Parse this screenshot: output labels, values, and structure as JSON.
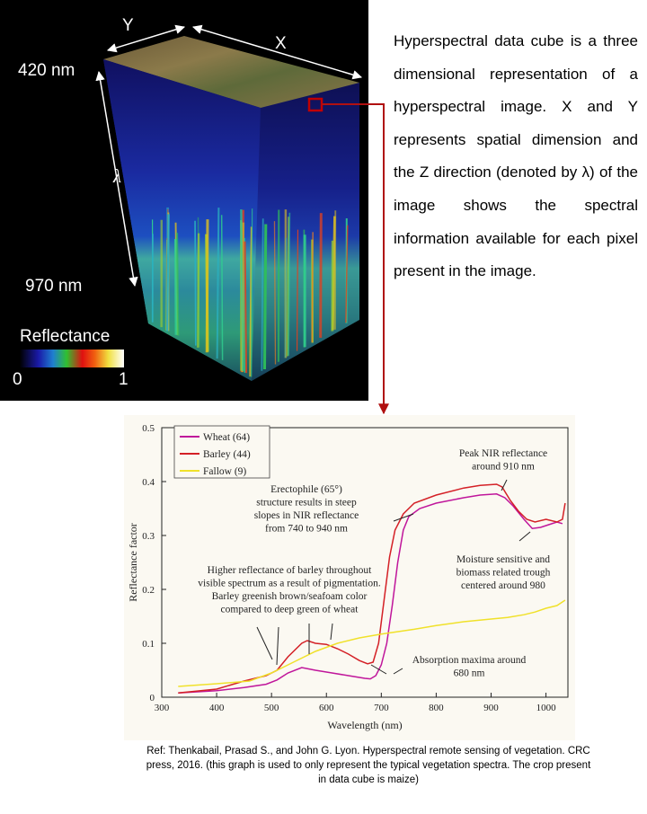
{
  "cube": {
    "axis_y": "Y",
    "axis_x": "X",
    "axis_lambda": "λ",
    "top_wavelength": "420 nm",
    "bottom_wavelength": "970 nm",
    "colorbar": {
      "title": "Reflectance",
      "min_label": "0",
      "max_label": "1"
    }
  },
  "description": "Hyperspectral data cube is a three dimensional representation of a hyperspectral image. X and Y represents spatial dimension and the Z direction (denoted by λ) of the image shows the spectral information available for each pixel present in the image.",
  "chart_data": {
    "type": "line",
    "xlabel": "Wavelength (nm)",
    "ylabel": "Reflectance factor",
    "xlim": [
      300,
      1040
    ],
    "ylim": [
      0,
      0.5
    ],
    "xticks": [
      300,
      400,
      500,
      600,
      700,
      800,
      900,
      1000
    ],
    "yticks": [
      0,
      0.1,
      0.2,
      0.3,
      0.4,
      0.5
    ],
    "ytick_labels": [
      "0",
      "0.1",
      "0.2",
      "0.3",
      "0.4",
      "0.5"
    ],
    "grid": false,
    "legend_position": "top-left",
    "series": [
      {
        "name": "Wheat (64)",
        "color": "#c0169b",
        "points": [
          [
            330,
            0.008
          ],
          [
            400,
            0.012
          ],
          [
            450,
            0.018
          ],
          [
            490,
            0.024
          ],
          [
            510,
            0.032
          ],
          [
            530,
            0.045
          ],
          [
            555,
            0.055
          ],
          [
            580,
            0.05
          ],
          [
            610,
            0.045
          ],
          [
            640,
            0.04
          ],
          [
            670,
            0.035
          ],
          [
            680,
            0.034
          ],
          [
            690,
            0.04
          ],
          [
            700,
            0.06
          ],
          [
            710,
            0.1
          ],
          [
            720,
            0.17
          ],
          [
            730,
            0.25
          ],
          [
            740,
            0.31
          ],
          [
            750,
            0.335
          ],
          [
            770,
            0.35
          ],
          [
            800,
            0.36
          ],
          [
            850,
            0.37
          ],
          [
            880,
            0.375
          ],
          [
            910,
            0.377
          ],
          [
            925,
            0.37
          ],
          [
            940,
            0.355
          ],
          [
            960,
            0.33
          ],
          [
            975,
            0.313
          ],
          [
            990,
            0.315
          ],
          [
            1005,
            0.32
          ],
          [
            1020,
            0.325
          ],
          [
            1030,
            0.322
          ]
        ]
      },
      {
        "name": "Barley (44)",
        "color": "#d42026",
        "points": [
          [
            330,
            0.008
          ],
          [
            400,
            0.015
          ],
          [
            450,
            0.03
          ],
          [
            490,
            0.04
          ],
          [
            510,
            0.05
          ],
          [
            530,
            0.075
          ],
          [
            555,
            0.1
          ],
          [
            565,
            0.105
          ],
          [
            580,
            0.1
          ],
          [
            600,
            0.098
          ],
          [
            620,
            0.09
          ],
          [
            640,
            0.08
          ],
          [
            660,
            0.068
          ],
          [
            675,
            0.062
          ],
          [
            685,
            0.065
          ],
          [
            695,
            0.1
          ],
          [
            705,
            0.18
          ],
          [
            715,
            0.26
          ],
          [
            725,
            0.31
          ],
          [
            740,
            0.34
          ],
          [
            760,
            0.36
          ],
          [
            800,
            0.375
          ],
          [
            850,
            0.388
          ],
          [
            880,
            0.393
          ],
          [
            910,
            0.395
          ],
          [
            920,
            0.39
          ],
          [
            935,
            0.365
          ],
          [
            950,
            0.345
          ],
          [
            965,
            0.33
          ],
          [
            980,
            0.325
          ],
          [
            1000,
            0.33
          ],
          [
            1020,
            0.325
          ],
          [
            1030,
            0.33
          ],
          [
            1035,
            0.36
          ]
        ]
      },
      {
        "name": "Fallow (9)",
        "color": "#f0e12a",
        "points": [
          [
            330,
            0.02
          ],
          [
            400,
            0.025
          ],
          [
            460,
            0.03
          ],
          [
            500,
            0.045
          ],
          [
            540,
            0.065
          ],
          [
            580,
            0.085
          ],
          [
            620,
            0.1
          ],
          [
            660,
            0.11
          ],
          [
            700,
            0.117
          ],
          [
            760,
            0.126
          ],
          [
            800,
            0.133
          ],
          [
            850,
            0.14
          ],
          [
            900,
            0.145
          ],
          [
            930,
            0.148
          ],
          [
            960,
            0.153
          ],
          [
            980,
            0.158
          ],
          [
            1000,
            0.165
          ],
          [
            1020,
            0.17
          ],
          [
            1035,
            0.18
          ]
        ]
      }
    ],
    "annotations": [
      "Peak NIR reflectance around 910 nm",
      "Erectophile (65°) structure results in steep slopes in NIR reflectance from 740 to 940 nm",
      "Moisture sensitive and biomass related trough centered around 980",
      "Higher reflectance of barley throughout visible spectrum as a result of pigmentation. Barley greenish brown/seafoam color compared to deep green of wheat",
      "Absorption maxima around 680 nm"
    ]
  },
  "reference": "Ref: Thenkabail, Prasad S., and John G. Lyon. Hyperspectral remote sensing of vegetation. CRC press, 2016. (this graph is used to only represent the typical vegetation spectra. The crop present in data cube is maize)"
}
